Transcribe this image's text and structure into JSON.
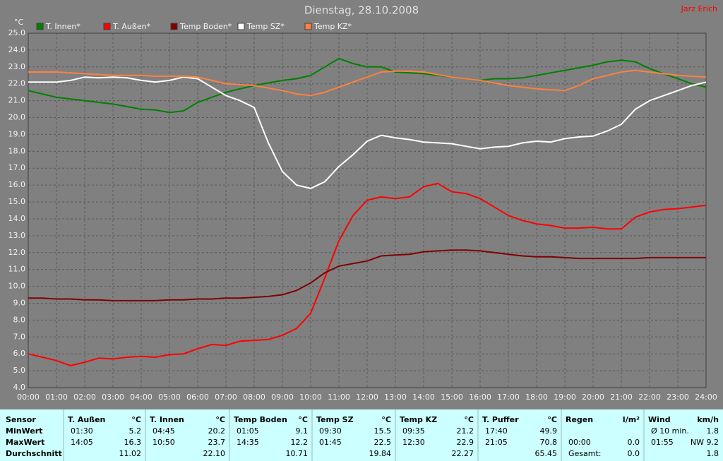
{
  "chart_data": {
    "type": "line",
    "title": "Dienstag, 28.10.2008",
    "author": "Jarz Erich",
    "y_label": "°C",
    "xlim": [
      0,
      24
    ],
    "ylim": [
      4,
      25
    ],
    "grid": true,
    "xticks": [
      {
        "value": 0,
        "label": "00:00"
      },
      {
        "value": 1,
        "label": "01:00"
      },
      {
        "value": 2,
        "label": "02:00"
      },
      {
        "value": 3,
        "label": "03:00"
      },
      {
        "value": 4,
        "label": "04:00"
      },
      {
        "value": 5,
        "label": "05:00"
      },
      {
        "value": 6,
        "label": "06:00"
      },
      {
        "value": 7,
        "label": "07:00"
      },
      {
        "value": 8,
        "label": "08:00"
      },
      {
        "value": 9,
        "label": "09:00"
      },
      {
        "value": 10,
        "label": "10:00"
      },
      {
        "value": 11,
        "label": "11:00"
      },
      {
        "value": 12,
        "label": "12:00"
      },
      {
        "value": 13,
        "label": "13:00"
      },
      {
        "value": 14,
        "label": "14:00"
      },
      {
        "value": 15,
        "label": "15:00"
      },
      {
        "value": 16,
        "label": "16:00"
      },
      {
        "value": 17,
        "label": "17:00"
      },
      {
        "value": 18,
        "label": "18:00"
      },
      {
        "value": 19,
        "label": "19:00"
      },
      {
        "value": 20,
        "label": "20:00"
      },
      {
        "value": 21,
        "label": "21:00"
      },
      {
        "value": 22,
        "label": "22:00"
      },
      {
        "value": 23,
        "label": "23:00"
      },
      {
        "value": 24,
        "label": "24:00"
      }
    ],
    "yticks": [
      {
        "value": 4,
        "label": "4.0"
      },
      {
        "value": 5,
        "label": "5.0"
      },
      {
        "value": 6,
        "label": "6.0"
      },
      {
        "value": 7,
        "label": "7.0"
      },
      {
        "value": 8,
        "label": "8.0"
      },
      {
        "value": 9,
        "label": "9.0"
      },
      {
        "value": 10,
        "label": "10.0"
      },
      {
        "value": 11,
        "label": "11.0"
      },
      {
        "value": 12,
        "label": "12.0"
      },
      {
        "value": 13,
        "label": "13.0"
      },
      {
        "value": 14,
        "label": "14.0"
      },
      {
        "value": 15,
        "label": "15.0"
      },
      {
        "value": 16,
        "label": "16.0"
      },
      {
        "value": 17,
        "label": "17.0"
      },
      {
        "value": 18,
        "label": "18.0"
      },
      {
        "value": 19,
        "label": "19.0"
      },
      {
        "value": 20,
        "label": "20.0"
      },
      {
        "value": 21,
        "label": "21.0"
      },
      {
        "value": 22,
        "label": "22.0"
      },
      {
        "value": 23,
        "label": "23.0"
      },
      {
        "value": 24,
        "label": "24.0"
      },
      {
        "value": 25,
        "label": "25.0"
      }
    ],
    "x": [
      0,
      0.5,
      1,
      1.5,
      2,
      2.5,
      3,
      3.5,
      4,
      4.5,
      5,
      5.5,
      6,
      6.5,
      7,
      7.5,
      8,
      8.5,
      9,
      9.5,
      10,
      10.5,
      11,
      11.5,
      12,
      12.5,
      13,
      13.5,
      14,
      14.5,
      15,
      15.5,
      16,
      16.5,
      17,
      17.5,
      18,
      18.5,
      19,
      19.5,
      20,
      20.5,
      21,
      21.5,
      22,
      22.5,
      23,
      23.5,
      24
    ],
    "series": [
      {
        "name": "T. Innen*",
        "color": "#008000",
        "values": [
          21.6,
          21.4,
          21.2,
          21.1,
          21.0,
          20.9,
          20.8,
          20.65,
          20.5,
          20.45,
          20.3,
          20.4,
          20.9,
          21.2,
          21.5,
          21.7,
          21.9,
          22.05,
          22.2,
          22.3,
          22.5,
          23.0,
          23.5,
          23.2,
          23.0,
          23.0,
          22.7,
          22.65,
          22.6,
          22.5,
          22.4,
          22.3,
          22.2,
          22.3,
          22.3,
          22.35,
          22.5,
          22.65,
          22.8,
          22.95,
          23.1,
          23.3,
          23.4,
          23.3,
          22.9,
          22.6,
          22.3,
          22.0,
          21.8
        ]
      },
      {
        "name": "T. Außen*",
        "color": "#ff0000",
        "values": [
          6.0,
          5.8,
          5.6,
          5.3,
          5.5,
          5.75,
          5.7,
          5.8,
          5.85,
          5.8,
          5.95,
          6.0,
          6.3,
          6.55,
          6.5,
          6.75,
          6.8,
          6.85,
          7.1,
          7.5,
          8.4,
          10.5,
          12.7,
          14.2,
          15.1,
          15.3,
          15.2,
          15.3,
          15.9,
          16.1,
          15.6,
          15.5,
          15.2,
          14.7,
          14.2,
          13.9,
          13.7,
          13.6,
          13.45,
          13.45,
          13.5,
          13.4,
          13.4,
          14.1,
          14.4,
          14.55,
          14.6,
          14.7,
          14.8
        ]
      },
      {
        "name": "Temp Boden*",
        "color": "#800000",
        "values": [
          9.3,
          9.3,
          9.25,
          9.25,
          9.2,
          9.2,
          9.15,
          9.15,
          9.15,
          9.15,
          9.2,
          9.2,
          9.25,
          9.25,
          9.3,
          9.3,
          9.35,
          9.4,
          9.5,
          9.75,
          10.2,
          10.8,
          11.2,
          11.35,
          11.5,
          11.8,
          11.85,
          11.9,
          12.05,
          12.1,
          12.15,
          12.15,
          12.1,
          12.0,
          11.9,
          11.8,
          11.75,
          11.75,
          11.7,
          11.65,
          11.65,
          11.65,
          11.65,
          11.65,
          11.7,
          11.7,
          11.7,
          11.7,
          11.7
        ]
      },
      {
        "name": "Temp SZ*",
        "color": "#ffffff",
        "values": [
          22.1,
          22.1,
          22.1,
          22.2,
          22.4,
          22.35,
          22.4,
          22.35,
          22.2,
          22.1,
          22.2,
          22.4,
          22.3,
          21.8,
          21.3,
          21.0,
          20.6,
          18.5,
          16.8,
          16.0,
          15.8,
          16.2,
          17.1,
          17.8,
          18.6,
          18.95,
          18.8,
          18.7,
          18.55,
          18.5,
          18.45,
          18.3,
          18.15,
          18.25,
          18.3,
          18.5,
          18.6,
          18.55,
          18.75,
          18.85,
          18.9,
          19.2,
          19.6,
          20.5,
          21.0,
          21.3,
          21.6,
          21.9,
          22.1
        ]
      },
      {
        "name": "Temp KZ*",
        "color": "#ff8040",
        "values": [
          22.7,
          22.7,
          22.7,
          22.65,
          22.6,
          22.55,
          22.5,
          22.5,
          22.5,
          22.45,
          22.45,
          22.45,
          22.4,
          22.2,
          22.0,
          21.95,
          21.9,
          21.75,
          21.6,
          21.4,
          21.3,
          21.5,
          21.8,
          22.1,
          22.4,
          22.7,
          22.75,
          22.75,
          22.7,
          22.55,
          22.4,
          22.3,
          22.2,
          22.05,
          21.9,
          21.8,
          21.7,
          21.65,
          21.6,
          21.9,
          22.3,
          22.5,
          22.7,
          22.8,
          22.7,
          22.6,
          22.5,
          22.45,
          22.4
        ]
      }
    ]
  },
  "table": {
    "row_labels": [
      "Sensor",
      "MinWert",
      "MaxWert",
      "Durchschnitt"
    ],
    "groups": [
      {
        "title": "T. Außen",
        "unit": "°C",
        "min": [
          "01:30",
          "5.2"
        ],
        "max": [
          "14:05",
          "16.3"
        ],
        "avg": [
          "11.02"
        ]
      },
      {
        "title": "T. Innen",
        "unit": "°C",
        "min": [
          "04:45",
          "20.2"
        ],
        "max": [
          "10:50",
          "23.7"
        ],
        "avg": [
          "22.10"
        ]
      },
      {
        "title": "Temp Boden",
        "unit": "°C",
        "min": [
          "01:05",
          "9.1"
        ],
        "max": [
          "14:35",
          "12.2"
        ],
        "avg": [
          "10.71"
        ]
      },
      {
        "title": "Temp SZ",
        "unit": "°C",
        "min": [
          "09:30",
          "15.5"
        ],
        "max": [
          "01:45",
          "22.5"
        ],
        "avg": [
          "19.84"
        ]
      },
      {
        "title": "Temp KZ",
        "unit": "°C",
        "min": [
          "09:35",
          "21.2"
        ],
        "max": [
          "12:30",
          "22.9"
        ],
        "avg": [
          "22.27"
        ]
      },
      {
        "title": "T. Puffer",
        "unit": "°C",
        "min": [
          "17:40",
          "49.9"
        ],
        "max": [
          "21:05",
          "70.8"
        ],
        "avg": [
          "65.45"
        ]
      },
      {
        "title": "Regen",
        "unit": "l/m²",
        "max": [
          "00:00",
          "0.0"
        ],
        "avg": [
          "Gesamt:",
          "0.0"
        ]
      },
      {
        "title": "Wind",
        "unit": "km/h",
        "min": [
          "Ø 10 min.",
          "1.8"
        ],
        "max": [
          "01:55",
          "NW 9.2"
        ],
        "avg": [
          "1.8"
        ]
      }
    ]
  }
}
